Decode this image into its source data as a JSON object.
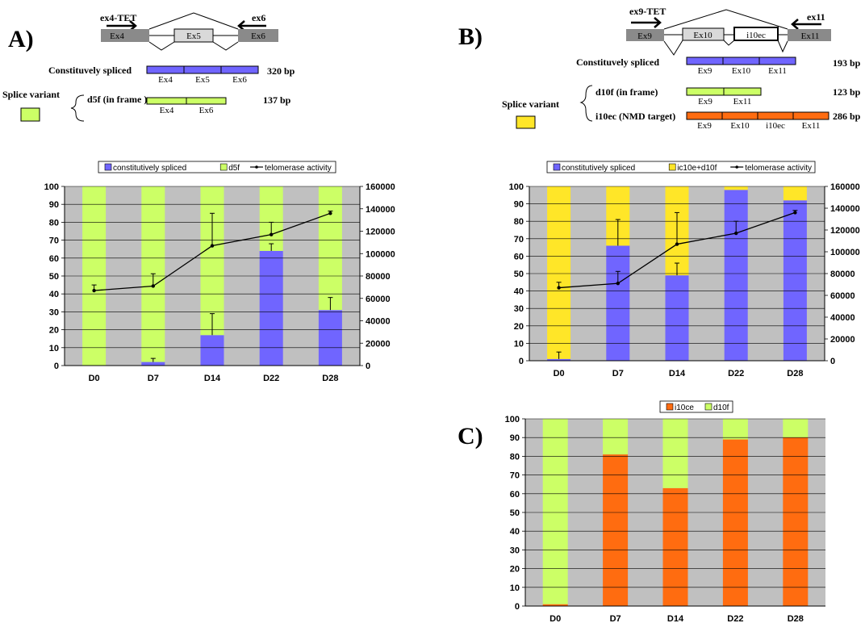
{
  "colors": {
    "constitutive": "#7065ff",
    "variant_green": "#ccff66",
    "variant_yellow": "#ffe628",
    "nmd_orange": "#ff6c10",
    "exon_gray": "#8a8a8a",
    "plot_bg": "#c0c0c0",
    "line": "#000000"
  },
  "panelA": {
    "label": "A)",
    "primer_fwd": "ex4-TET",
    "primer_rev": "ex6",
    "exons": [
      "Ex4",
      "Ex5",
      "Ex6"
    ],
    "const_label": "Constituvely spliced",
    "const_bp": "320 bp",
    "const_exons": [
      "Ex4",
      "Ex5",
      "Ex6"
    ],
    "splice_label": "Splice variant",
    "variant_label": "d5f  (in frame )",
    "variant_bp": "137 bp",
    "variant_exons": [
      "Ex4",
      "Ex6"
    ]
  },
  "panelB": {
    "label": "B)",
    "primer_fwd": "ex9-TET",
    "primer_rev": "ex11",
    "exons": [
      "Ex9",
      "Ex10",
      "i10ec",
      "Ex11"
    ],
    "const_label": "Constituvely spliced",
    "const_bp": "193 bp",
    "const_exons": [
      "Ex9",
      "Ex10",
      "Ex11"
    ],
    "splice_label": "Splice variant",
    "variant1_label": "d10f  (in frame)",
    "variant1_bp": "123 bp",
    "variant1_exons": [
      "Ex9",
      "Ex11"
    ],
    "variant2_label": "i10ec  (NMD target)",
    "variant2_bp": "286 bp",
    "variant2_exons": [
      "Ex9",
      "Ex10",
      "i10ec",
      "Ex11"
    ]
  },
  "panelC": {
    "label": "C)"
  },
  "chart_data": [
    {
      "type": "bar",
      "stacked": true,
      "categories": [
        "D0",
        "D7",
        "D14",
        "D22",
        "D28"
      ],
      "ylim": [
        0,
        100
      ],
      "yticks": [
        "0",
        "10",
        "20",
        "30",
        "40",
        "50",
        "60",
        "70",
        "80",
        "90",
        "100"
      ],
      "y2lim": [
        0,
        160000
      ],
      "y2ticks": [
        "0",
        "20000",
        "40000",
        "60000",
        "80000",
        "100000",
        "120000",
        "140000",
        "160000"
      ],
      "legend": [
        "constitutively spliced",
        "d5f",
        "telomerase activity"
      ],
      "series": [
        {
          "name": "constitutively spliced",
          "values": [
            0,
            2,
            17,
            64,
            31
          ],
          "error": [
            0,
            2,
            12,
            4,
            7
          ]
        },
        {
          "name": "d5f",
          "values": [
            100,
            98,
            83,
            36,
            69
          ]
        }
      ],
      "line": {
        "name": "telomerase activity",
        "values": [
          67000,
          71000,
          107000,
          117000,
          136000
        ],
        "error": [
          5000,
          11000,
          29000,
          11000,
          2000
        ]
      },
      "grid": true,
      "legend_position": "top"
    },
    {
      "type": "bar",
      "stacked": true,
      "categories": [
        "D0",
        "D7",
        "D14",
        "D22",
        "D28"
      ],
      "ylim": [
        0,
        100
      ],
      "yticks": [
        "0",
        "10",
        "20",
        "30",
        "40",
        "50",
        "60",
        "70",
        "80",
        "90",
        "100"
      ],
      "y2lim": [
        0,
        160000
      ],
      "y2ticks": [
        "0",
        "20000",
        "40000",
        "60000",
        "80000",
        "100000",
        "120000",
        "140000",
        "160000"
      ],
      "legend": [
        "constitutively spliced",
        "ic10e+d10f",
        "telomerase activity"
      ],
      "series": [
        {
          "name": "constitutively spliced",
          "values": [
            1,
            66,
            49,
            98,
            92
          ],
          "error": [
            4,
            15,
            7,
            0,
            0
          ]
        },
        {
          "name": "ic10e+d10f",
          "values": [
            99,
            34,
            51,
            2,
            8
          ]
        }
      ],
      "line": {
        "name": "telomerase activity",
        "values": [
          67000,
          71000,
          107000,
          117000,
          136000
        ],
        "error": [
          5000,
          11000,
          29000,
          11000,
          2000
        ]
      },
      "grid": true,
      "legend_position": "top"
    },
    {
      "type": "bar",
      "stacked": true,
      "categories": [
        "D0",
        "D7",
        "D14",
        "D22",
        "D28"
      ],
      "ylim": [
        0,
        100
      ],
      "yticks": [
        "0",
        "10",
        "20",
        "30",
        "40",
        "50",
        "60",
        "70",
        "80",
        "90",
        "100"
      ],
      "legend": [
        "i10ce",
        "d10f"
      ],
      "series": [
        {
          "name": "i10ce",
          "values": [
            1,
            81,
            63,
            89,
            90
          ]
        },
        {
          "name": "d10f",
          "values": [
            99,
            19,
            37,
            11,
            10
          ]
        }
      ],
      "grid": true,
      "legend_position": "top"
    }
  ]
}
